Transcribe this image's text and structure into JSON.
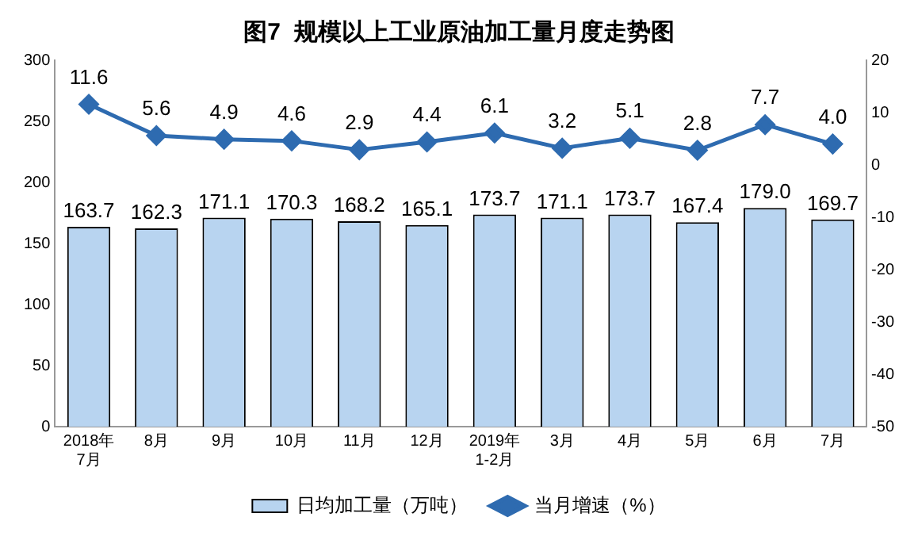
{
  "chart_data": {
    "type": "bar",
    "title": "图7  规模以上工业原油加工量月度走势图",
    "categories": [
      "2018年\n7月",
      "8月",
      "9月",
      "10月",
      "11月",
      "12月",
      "2019年\n1-2月",
      "3月",
      "4月",
      "5月",
      "6月",
      "7月"
    ],
    "series": [
      {
        "name": "日均加工量（万吨）",
        "type": "bar",
        "color": "#b8d4f0",
        "values": [
          163.7,
          162.3,
          171.1,
          170.3,
          168.2,
          165.1,
          173.7,
          171.1,
          173.7,
          167.4,
          179.0,
          169.7
        ],
        "value_labels": [
          "163.7",
          "162.3",
          "171.1",
          "170.3",
          "168.2",
          "165.1",
          "173.7",
          "171.1",
          "173.7",
          "167.4",
          "179.0",
          "169.7"
        ]
      },
      {
        "name": "当月增速（%）",
        "type": "line",
        "axis": "y2",
        "color": "#2e6bb0",
        "values": [
          11.6,
          5.6,
          4.9,
          4.6,
          2.9,
          4.4,
          6.1,
          3.2,
          5.1,
          2.8,
          7.7,
          4.0
        ],
        "value_labels": [
          "11.6",
          "5.6",
          "4.9",
          "4.6",
          "2.9",
          "4.4",
          "6.1",
          "3.2",
          "5.1",
          "2.8",
          "7.7",
          "4.0"
        ]
      }
    ],
    "ylim": [
      0,
      300
    ],
    "yticks": [
      0,
      50,
      100,
      150,
      200,
      250,
      300
    ],
    "y2lim": [
      -50,
      20
    ],
    "y2ticks": [
      -50,
      -40,
      -30,
      -20,
      -10,
      0,
      10,
      20
    ],
    "grid": false,
    "legend": "bottom",
    "marker": "diamond",
    "line_style": "solid"
  }
}
